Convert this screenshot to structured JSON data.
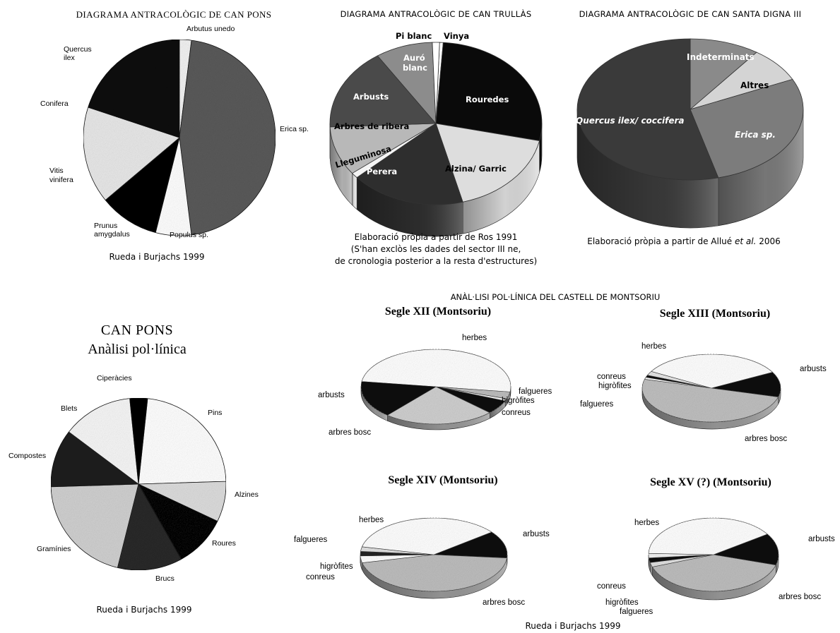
{
  "chart_data": [
    {
      "type": "pie",
      "title": "DIAGRAMA ANTRACOLÒGIC DE CAN PONS",
      "credit": "Rueda i Burjachs 1999",
      "labels": [
        "Arbutus unedo",
        "Erica sp.",
        "Populus sp.",
        "Prunus amygdalus",
        "Vitis vinifera",
        "Conifera",
        "Quercus ilex"
      ],
      "values": [
        2,
        46,
        6,
        10,
        16,
        0,
        20
      ],
      "colors": [
        "#f2f2f2",
        "#5a5a5a",
        "#ffffff",
        "#050505",
        "#e8e8e8",
        "#c8c8c8",
        "#080808"
      ]
    },
    {
      "type": "pie",
      "title": "DIAGRAMA ANTRACOLÒGIC DE CAN TRULLÀS",
      "note": [
        "Elaboració pròpia a partir de Ros 1991",
        "(S'han exclòs les dades del sector III ne,",
        "de cronologia posterior a la resta d'estructures)"
      ],
      "labels": [
        "Vinya",
        "Rouredes",
        "Alzina/ Garric",
        "Perera",
        "Lleguminosa",
        "Arbres de ribera",
        "Arbusts",
        "Auró blanc",
        "Pi blanc"
      ],
      "values": [
        0.5,
        25,
        16,
        16,
        1,
        9,
        15,
        8,
        1
      ],
      "colors": [
        "#ffffff",
        "#0a0a0a",
        "#dddddd",
        "#2e2e2e",
        "#f4f4f4",
        "#b8b8b8",
        "#4a4a4a",
        "#8c8c8c",
        "#ffffff"
      ]
    },
    {
      "type": "pie",
      "title": "DIAGRAMA ANTRACOLÒGIC DE CAN SANTA DIGNA III",
      "note_parts": [
        "Elaboració pròpia a partir de Allué ",
        "et al.",
        " 2006"
      ],
      "labels": [
        "Indeterminats",
        "Altres",
        "Erica sp.",
        "Quercus ilex/ coccifera"
      ],
      "values": [
        10,
        8,
        28,
        54
      ],
      "colors": [
        "#8a8a8a",
        "#d4d4d4",
        "#7c7c7c",
        "#3a3a3a"
      ]
    },
    {
      "type": "pie",
      "title": [
        "CAN PONS",
        "Anàlisi pol·línica"
      ],
      "credit": "Rueda i Burjachs 1999",
      "labels": [
        "Pins",
        "Alzines",
        "Roures",
        "Brucs",
        "Gramínies",
        "Compostes",
        "Blets",
        "Ciperàcies"
      ],
      "values": [
        21,
        7,
        9,
        11,
        19,
        10,
        12,
        3
      ],
      "colors": [
        "#ffffff",
        "#dcdcdc",
        "#070707",
        "#2a2a2a",
        "#d0d0d0",
        "#1e1e1e",
        "#f6f6f6",
        "#050505"
      ]
    },
    {
      "type": "pie",
      "group_title": "ANÀL·LISI POL·LÍNICA DEL CASTELL DE MONTSORIU",
      "credit": "Rueda i Burjachs 1999",
      "panels": [
        {
          "title": "Segle XII (Montsoriu)",
          "labels": [
            "herbes",
            "falgueres",
            "higròfites",
            "conreus",
            "arbres bosc",
            "arbusts"
          ],
          "values": [
            50,
            3,
            1,
            6,
            24,
            16
          ]
        },
        {
          "title": "Segle XIII (Montsoriu)",
          "labels": [
            "arbusts",
            "arbres bosc",
            "falgueres",
            "higròfites",
            "conreus",
            "herbes"
          ],
          "values": [
            12,
            50,
            1,
            1,
            2,
            34
          ]
        },
        {
          "title": "Segle XIV (Montsoriu)",
          "labels": [
            "arbusts",
            "arbres bosc",
            "conreus",
            "higròfites",
            "falgueres",
            "herbes"
          ],
          "values": [
            12,
            45,
            3,
            2,
            2,
            36
          ]
        },
        {
          "title": "Segle XV (?) (Montsoriu)",
          "labels": [
            "arbusts",
            "arbres bosc",
            "falgueres",
            "higròfites",
            "conreus",
            "herbes"
          ],
          "values": [
            14,
            40,
            2,
            2,
            2,
            40
          ]
        }
      ]
    }
  ]
}
